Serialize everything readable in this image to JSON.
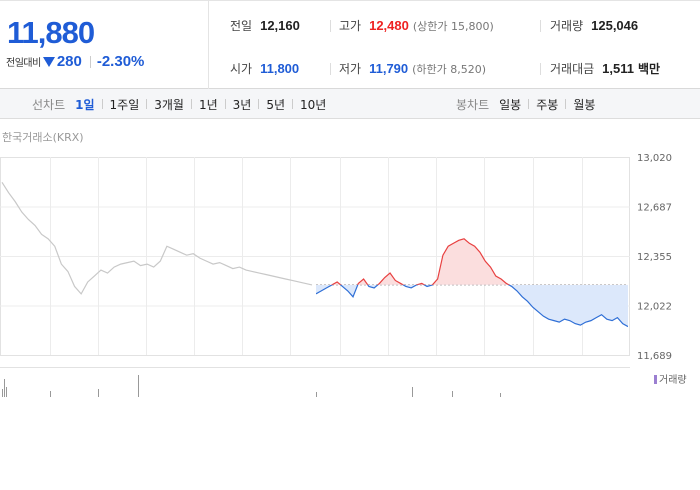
{
  "quote": {
    "price": "11,880",
    "diff_label": "전일대비",
    "change": "280",
    "change_pct": "-2.30%",
    "direction": "down",
    "colors": {
      "down": "#1f5cd6",
      "up": "#e22222"
    }
  },
  "info": {
    "prev_label": "전일",
    "prev_val": "12,160",
    "high_label": "고가",
    "high_val": "12,480",
    "upper_limit": "(상한가 15,800)",
    "volume_label": "거래량",
    "volume_val": "125,046",
    "open_label": "시가",
    "open_val": "11,800",
    "low_label": "저가",
    "low_val": "11,790",
    "lower_limit": "(하한가 8,520)",
    "amount_label": "거래대금",
    "amount_val": "1,511",
    "amount_unit": "백만"
  },
  "tabs": {
    "line_title": "선차트",
    "line_tabs": [
      "1일",
      "1주일",
      "3개월",
      "1년",
      "3년",
      "5년",
      "10년"
    ],
    "line_active": 0,
    "candle_title": "봉차트",
    "candle_tabs": [
      "일봉",
      "주봉",
      "월봉"
    ]
  },
  "chart_data": {
    "type": "line",
    "source_label": "한국거래소(KRX)",
    "y_ticks": [
      "13,020",
      "12,687",
      "12,355",
      "12,022",
      "11,689"
    ],
    "ylim": [
      11689,
      13020
    ],
    "reference_price": 12160,
    "volume_legend": "거래량",
    "colors": {
      "prev_day": "#c8c8c8",
      "above": "#e84040",
      "below": "#2f6fd6",
      "fill_above": "#fbdede",
      "fill_below": "#dce8fb"
    },
    "prev_day_series": [
      12850,
      12780,
      12720,
      12650,
      12600,
      12560,
      12500,
      12470,
      12420,
      12300,
      12250,
      12150,
      12100,
      12180,
      12220,
      12260,
      12240,
      12280,
      12300,
      12310,
      12320,
      12290,
      12300,
      12280,
      12320,
      12420,
      12400,
      12380,
      12360,
      12370,
      12340,
      12320,
      12300,
      12310,
      12290,
      12270,
      12280,
      12260,
      12250,
      12240,
      12230,
      12220,
      12210,
      12200,
      12190,
      12180,
      12170,
      12160
    ],
    "today_series": [
      12100,
      12120,
      12140,
      12160,
      12180,
      12150,
      12120,
      12080,
      12170,
      12200,
      12150,
      12140,
      12170,
      12210,
      12240,
      12190,
      12170,
      12150,
      12140,
      12160,
      12170,
      12150,
      12160,
      12200,
      12360,
      12420,
      12440,
      12460,
      12470,
      12440,
      12420,
      12380,
      12320,
      12280,
      12220,
      12200,
      12170,
      12150,
      12120,
      12080,
      12050,
      12010,
      11980,
      11950,
      11930,
      11920,
      11910,
      11930,
      11920,
      11900,
      11890,
      11910,
      11920,
      11940,
      11960,
      11930,
      11920,
      11940,
      11900,
      11880
    ]
  }
}
